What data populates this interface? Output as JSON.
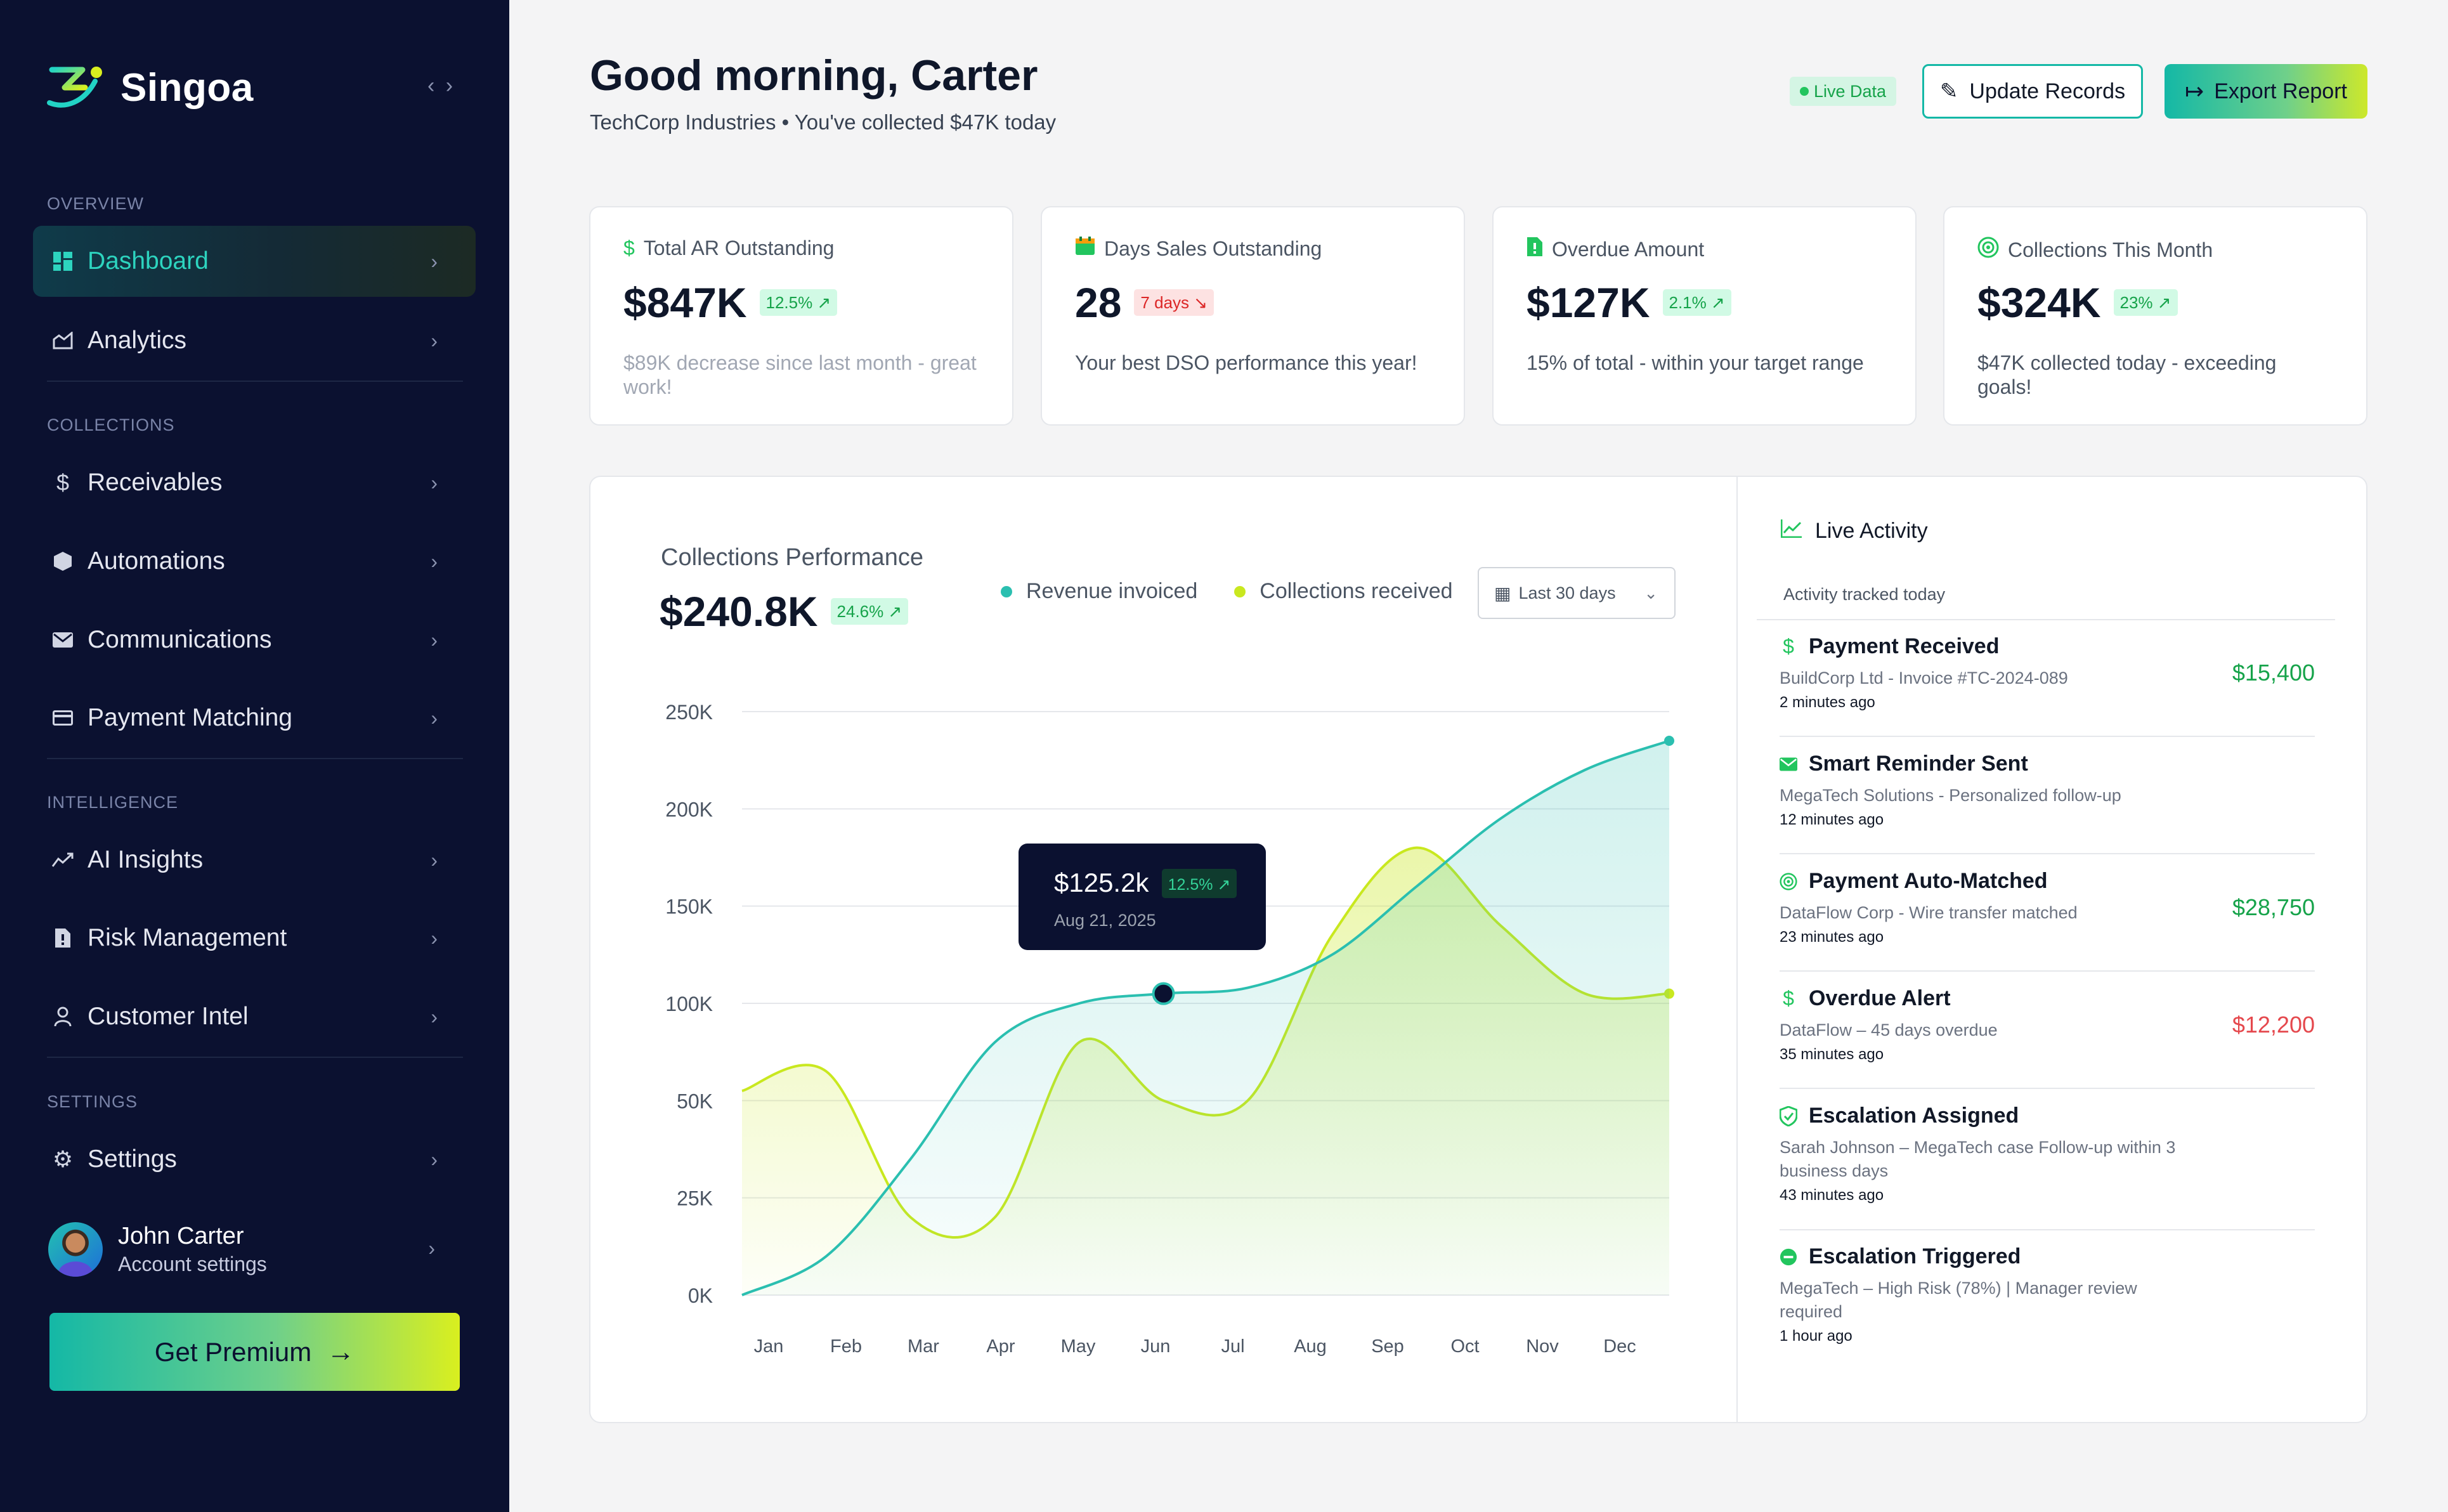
{
  "sidebar": {
    "brand": "Singoa",
    "collapse_icon": "‹ ›",
    "sections": {
      "overview": "OVERVIEW",
      "collections": "COLLECTIONS",
      "intelligence": "INTELLIGENCE",
      "settings": "SETTINGS"
    },
    "items": {
      "dashboard": "Dashboard",
      "analytics": "Analytics",
      "receivables": "Receivables",
      "automations": "Automations",
      "communications": "Communications",
      "payment_matching": "Payment Matching",
      "ai_insights": "AI Insights",
      "risk_management": "Risk Management",
      "customer_intel": "Customer Intel",
      "settings": "Settings"
    },
    "user": {
      "name": "John Carter",
      "subtitle": "Account settings"
    },
    "premium_label": "Get Premium"
  },
  "header": {
    "greeting": "Good morning, Carter",
    "subtitle": "TechCorp Industries • You've collected $47K today",
    "live_badge": "Live Data",
    "update_button": "Update Records",
    "export_button": "Export Report"
  },
  "kpis": [
    {
      "label": "Total AR Outstanding",
      "value": "$847K",
      "badge": "12.5% ↗",
      "badge_tone": "green",
      "desc": "$89K decrease since last month - great work!"
    },
    {
      "label": "Days Sales Outstanding",
      "value": "28",
      "badge": "7 days ↘",
      "badge_tone": "red",
      "desc": "Your best DSO performance this year!"
    },
    {
      "label": "Overdue Amount",
      "value": "$127K",
      "badge": "2.1% ↗",
      "badge_tone": "green",
      "desc": "15% of total - within your target range"
    },
    {
      "label": "Collections This Month",
      "value": "$324K",
      "badge": "23% ↗",
      "badge_tone": "green",
      "desc": "$47K collected today - exceeding goals!"
    }
  ],
  "chart_panel": {
    "title": "Collections Performance",
    "total": "$240.8K",
    "total_badge": "24.6% ↗",
    "legend": [
      "Revenue invoiced",
      "Collections received"
    ],
    "range": "Last 30 days",
    "tooltip": {
      "value": "$125.2k",
      "badge": "12.5% ↗",
      "date": "Aug 21, 2025"
    }
  },
  "chart_data": {
    "type": "area",
    "categories": [
      "Jan",
      "Feb",
      "Mar",
      "Apr",
      "May",
      "Jun",
      "Jul",
      "Aug",
      "Sep",
      "Oct",
      "Nov",
      "Dec"
    ],
    "y_ticks": [
      "250K",
      "200K",
      "150K",
      "100K",
      "50K",
      "25K",
      "0K"
    ],
    "series": [
      {
        "name": "Revenue invoiced",
        "color": "#2bbfb0",
        "values": [
          0,
          10,
          35,
          80,
          100,
          105,
          108,
          125,
          160,
          195,
          220,
          235
        ]
      },
      {
        "name": "Collections received",
        "color": "#c9e81f",
        "values": [
          55,
          65,
          20,
          20,
          80,
          50,
          50,
          135,
          180,
          140,
          105,
          105
        ]
      }
    ],
    "highlight": {
      "series": "Revenue invoiced",
      "category": "Jun"
    },
    "grid": true,
    "legend_position": "top"
  },
  "activity": {
    "title": "Live Activity",
    "subtitle": "Activity tracked today",
    "items": [
      {
        "icon": "dollar-icon",
        "title": "Payment Received",
        "desc": "BuildCorp Ltd - Invoice #TC-2024-089",
        "time": "2 minutes ago",
        "amount": "$15,400",
        "tone": "green"
      },
      {
        "icon": "mail-icon",
        "title": "Smart Reminder Sent",
        "desc": "MegaTech Solutions - Personalized follow-up",
        "time": "12 minutes ago",
        "amount": "",
        "tone": ""
      },
      {
        "icon": "target-icon",
        "title": "Payment Auto-Matched",
        "desc": "DataFlow Corp - Wire transfer matched",
        "time": "23 minutes ago",
        "amount": "$28,750",
        "tone": "green"
      },
      {
        "icon": "dollar-icon",
        "title": "Overdue Alert",
        "desc": "DataFlow – 45 days overdue",
        "time": "35 minutes ago",
        "amount": "$12,200",
        "tone": "red"
      },
      {
        "icon": "shield-icon",
        "title": "Escalation Assigned",
        "desc": "Sarah Johnson – MegaTech case Follow-up within 3 business days",
        "time": "43 minutes ago",
        "amount": "",
        "tone": ""
      },
      {
        "icon": "minus-circle-icon",
        "title": "Escalation Triggered",
        "desc": "MegaTech – High Risk (78%) | Manager review required",
        "time": "1 hour ago",
        "amount": "",
        "tone": ""
      }
    ]
  }
}
